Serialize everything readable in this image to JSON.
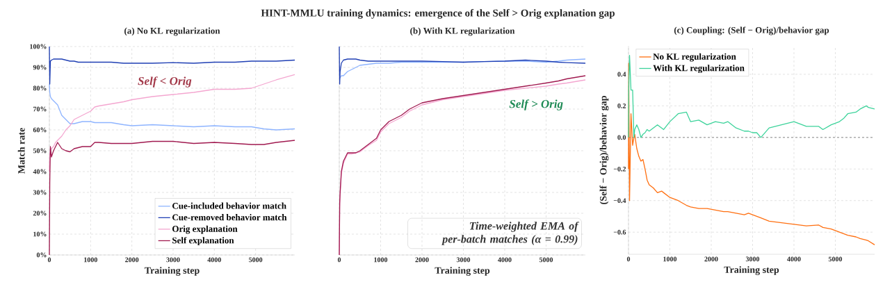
{
  "chart_data": [
    {
      "type": "line",
      "subtitle": "(a) No KL regularization",
      "xlabel": "Training step",
      "ylabel": "Match rate",
      "x": [
        0,
        10,
        25,
        50,
        100,
        150,
        200,
        300,
        400,
        500,
        600,
        700,
        800,
        1000,
        1100,
        1200,
        1500,
        1800,
        2000,
        2500,
        3000,
        3500,
        4000,
        4500,
        4900,
        5200,
        5500,
        5950
      ],
      "series": [
        {
          "name": "Cue-included behavior match",
          "color": "#8eb4ff",
          "values": [
            82,
            78,
            76,
            75,
            74,
            73,
            72,
            67,
            65,
            63,
            63,
            63.5,
            64,
            64,
            63.5,
            63.5,
            63.5,
            62.5,
            62,
            62.5,
            62,
            61.5,
            62,
            61.5,
            61.5,
            60.5,
            60,
            60.5
          ]
        },
        {
          "name": "Cue-removed behavior match",
          "color": "#1f3fb4",
          "values": [
            100,
            82,
            93,
            93.5,
            94,
            94,
            94,
            94,
            93.5,
            93,
            93,
            92.5,
            92.5,
            92.5,
            92.5,
            92.5,
            92.5,
            92,
            92,
            92,
            92.3,
            92,
            92.5,
            92.5,
            93,
            93,
            93,
            93.5
          ]
        },
        {
          "name": "Orig explanation",
          "color": "#f4a6d0",
          "values": [
            40,
            48,
            50,
            51,
            52,
            54,
            55,
            57,
            60,
            62,
            65,
            66,
            67,
            69,
            71,
            71.5,
            72.5,
            73.5,
            74.5,
            76,
            77,
            78,
            79.5,
            79.5,
            80,
            82,
            84,
            86.5
          ]
        },
        {
          "name": "Self explanation",
          "color": "#a0194f",
          "values": [
            0,
            35,
            52,
            47,
            50,
            52,
            54,
            51,
            50,
            49.5,
            51,
            51.5,
            52,
            52,
            54,
            54,
            53.5,
            53.5,
            53.5,
            54.5,
            54.5,
            53.5,
            54,
            53.5,
            53,
            53,
            54,
            55
          ]
        }
      ],
      "xlim": [
        0,
        5950
      ],
      "xticks": [
        0,
        1000,
        2000,
        3000,
        4000,
        5000
      ],
      "ylim": [
        0,
        100
      ],
      "yticks": [
        {
          "value": 0,
          "label": "0%"
        },
        {
          "value": 10,
          "label": "10%"
        },
        {
          "value": 20,
          "label": "20%"
        },
        {
          "value": 30,
          "label": "30%"
        },
        {
          "value": 40,
          "label": "40%"
        },
        {
          "value": 50,
          "label": "50%"
        },
        {
          "value": 60,
          "label": "60%"
        },
        {
          "value": 70,
          "label": "70%"
        },
        {
          "value": 80,
          "label": "80%"
        },
        {
          "value": 90,
          "label": "90%"
        },
        {
          "value": 100,
          "label": "100%"
        }
      ],
      "grid": true,
      "legend": "bottom right",
      "annotations": [
        "Self < Orig"
      ]
    },
    {
      "type": "line",
      "title": "HINT-MMLU training dynamics: emergence of the Self > Orig explanation gap",
      "subtitle": "(b) With KL regularization",
      "xlabel": "Training step",
      "x": [
        0,
        10,
        20,
        50,
        100,
        200,
        300,
        400,
        500,
        700,
        900,
        1000,
        1200,
        1500,
        1700,
        2000,
        2500,
        3000,
        3500,
        4000,
        4500,
        5000,
        5300,
        5500,
        5950
      ],
      "series": [
        {
          "color": "#8eb4ff",
          "values": [
            85,
            85,
            85,
            86,
            86,
            88,
            89,
            90,
            91,
            91.5,
            92,
            92,
            92,
            92.5,
            92.5,
            92.5,
            92.5,
            92.5,
            92.8,
            93,
            93,
            92.5,
            93,
            93.5,
            94
          ]
        },
        {
          "color": "#1f3fb4",
          "values": [
            100,
            82,
            88,
            92,
            93.5,
            94,
            94,
            94,
            93.5,
            93,
            93,
            93,
            93,
            93,
            93,
            93,
            92.8,
            92.5,
            92.8,
            93,
            93.5,
            93,
            92.5,
            92.3,
            92
          ]
        },
        {
          "color": "#f4a6d0",
          "values": [
            0,
            23,
            28,
            39,
            44,
            48.5,
            48.5,
            49,
            49.5,
            52.5,
            55,
            59,
            63,
            66,
            69,
            72,
            74.5,
            76,
            77.5,
            79,
            80,
            81,
            82,
            82.5,
            84
          ]
        },
        {
          "color": "#a0194f",
          "values": [
            0,
            25,
            30,
            40,
            45,
            49,
            49,
            49,
            50,
            53,
            56,
            60,
            64,
            67,
            70,
            73,
            75,
            76.5,
            78,
            79.5,
            81,
            82.5,
            83.5,
            84.5,
            86
          ]
        }
      ],
      "xlim": [
        0,
        5950
      ],
      "xticks": [
        0,
        1000,
        2000,
        3000,
        4000,
        5000
      ],
      "ylim": [
        0,
        100
      ],
      "yticks": [
        0,
        10,
        20,
        30,
        40,
        50,
        60,
        70,
        80,
        90,
        100
      ],
      "tick_labels": "x",
      "grid": true,
      "annotations": [
        "Self > Orig",
        "Time-weighted EMA of per-batch matches (α = 0.99)"
      ]
    },
    {
      "type": "line",
      "subtitle": "(c) Coupling: (Self − Orig)/behavior gap",
      "xlabel": "Training step",
      "ylabel": "(Self − Orig)/behavior gap",
      "x": [
        0,
        5,
        25,
        60,
        100,
        130,
        150,
        200,
        250,
        300,
        350,
        400,
        450,
        500,
        600,
        700,
        800,
        850,
        1000,
        1200,
        1400,
        1500,
        1700,
        1900,
        2100,
        2300,
        2400,
        2600,
        2800,
        2900,
        3000,
        3100,
        3200,
        3400,
        3700,
        4000,
        4300,
        4600,
        4700,
        4900,
        5000,
        5100,
        5200,
        5300,
        5500,
        5600,
        5750,
        5800,
        5950
      ],
      "series": [
        {
          "name": "No KL regularization",
          "color": "#ff6f10",
          "values": [
            -0.2,
            0.47,
            -0.4,
            0.15,
            -0.05,
            0.0,
            0.02,
            -0.07,
            -0.12,
            -0.15,
            -0.14,
            -0.2,
            -0.27,
            -0.3,
            -0.32,
            -0.35,
            -0.34,
            -0.35,
            -0.38,
            -0.4,
            -0.43,
            -0.44,
            -0.45,
            -0.45,
            -0.46,
            -0.47,
            -0.47,
            -0.48,
            -0.49,
            -0.48,
            -0.49,
            -0.5,
            -0.51,
            -0.53,
            -0.54,
            -0.55,
            -0.56,
            -0.555,
            -0.57,
            -0.58,
            -0.59,
            -0.6,
            -0.61,
            -0.62,
            -0.63,
            -0.64,
            -0.65,
            -0.655,
            -0.68
          ]
        },
        {
          "name": "With KL regularization",
          "color": "#3dd39b",
          "values": [
            0.0,
            0.3,
            0.52,
            0.3,
            0.3,
            0.0,
            0.05,
            0.08,
            0.05,
            0.0,
            0.02,
            0.03,
            0.05,
            0.04,
            0.06,
            0.08,
            0.06,
            0.05,
            0.1,
            0.15,
            0.16,
            0.1,
            0.11,
            0.08,
            0.1,
            0.09,
            0.1,
            0.06,
            0.04,
            0.04,
            0.03,
            0.03,
            0.0,
            0.06,
            0.08,
            0.1,
            0.07,
            0.07,
            0.05,
            0.08,
            0.09,
            0.1,
            0.12,
            0.15,
            0.16,
            0.18,
            0.2,
            0.19,
            0.18
          ]
        }
      ],
      "xlim": [
        0,
        5950
      ],
      "xticks": [
        0,
        1000,
        2000,
        3000,
        4000,
        5000
      ],
      "ylim": [
        -0.74,
        0.58
      ],
      "yticks": [
        {
          "value": -0.6,
          "label": "−0.6"
        },
        {
          "value": -0.4,
          "label": "−0.4"
        },
        {
          "value": -0.2,
          "label": "−0.2"
        },
        {
          "value": 0,
          "label": "0.0"
        },
        0.2,
        0.4
      ],
      "grid": true,
      "legend": "top left",
      "ref_lines": [
        {
          "axis": "y",
          "value": 0,
          "line_style": "dashed",
          "color": "#666666"
        }
      ]
    }
  ]
}
